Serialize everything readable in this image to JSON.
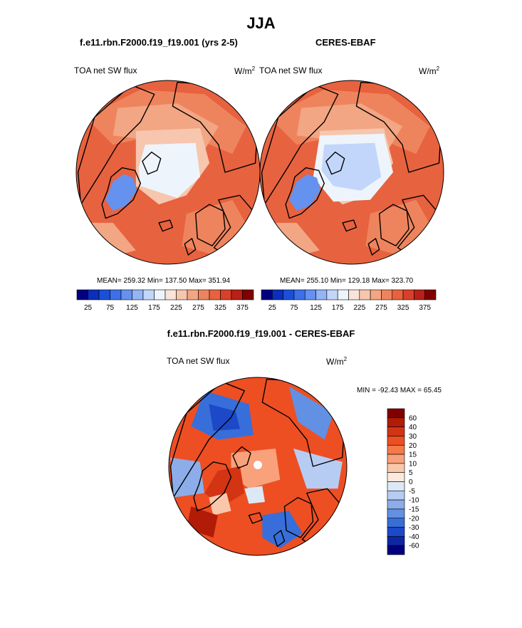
{
  "page": {
    "title": "JJA",
    "colors": {
      "deep_blue": "#000080",
      "deep_red": "#800000",
      "pale": "#f7e1d6"
    }
  },
  "panels": {
    "model": {
      "case": "f.e11.rbn.F2000.f19_f19.001 (yrs 2-5)",
      "variable": "TOA net SW flux",
      "units": "W/m",
      "units_exp": "2",
      "stats": "MEAN= 259.32  Min= 137.50  Max= 351.94"
    },
    "obs": {
      "case": "CERES-EBAF",
      "variable": "TOA net SW flux",
      "units": "W/m",
      "units_exp": "2",
      "stats": "MEAN= 255.10  Min= 129.18  Max= 323.70"
    },
    "diff": {
      "title": "f.e11.rbn.F2000.f19_f19.001 - CERES-EBAF",
      "variable": "TOA net SW flux",
      "units": "W/m",
      "units_exp": "2",
      "stats": "MIN = -92.43 MAX =  65.45"
    }
  },
  "chart_data": [
    {
      "type": "heatmap",
      "projection": "north-polar-stereographic",
      "title": "TOA net SW flux",
      "subtitle": "f.e11.rbn.F2000.f19_f19.001 (yrs 2-5)",
      "units": "W/m2",
      "stats": {
        "mean": 259.32,
        "min": 137.5,
        "max": 351.94
      },
      "colorbar": {
        "orientation": "horizontal",
        "levels": [
          25,
          50,
          75,
          100,
          125,
          150,
          175,
          200,
          225,
          250,
          275,
          300,
          325,
          350,
          375
        ],
        "tick_labels": [
          "25",
          "75",
          "125",
          "175",
          "225",
          "275",
          "325",
          "375"
        ],
        "colors": [
          "#000080",
          "#0c2ebd",
          "#1a4fd8",
          "#3c6fe8",
          "#6592ef",
          "#93b4f5",
          "#c2d6fb",
          "#eef4fb",
          "#fae4da",
          "#f6c6ae",
          "#f2a683",
          "#ee845d",
          "#e7623f",
          "#d8402a",
          "#b82018",
          "#800000"
        ]
      }
    },
    {
      "type": "heatmap",
      "projection": "north-polar-stereographic",
      "title": "TOA net SW flux",
      "subtitle": "CERES-EBAF",
      "units": "W/m2",
      "stats": {
        "mean": 255.1,
        "min": 129.18,
        "max": 323.7
      },
      "colorbar": {
        "orientation": "horizontal",
        "levels": [
          25,
          50,
          75,
          100,
          125,
          150,
          175,
          200,
          225,
          250,
          275,
          300,
          325,
          350,
          375
        ],
        "tick_labels": [
          "25",
          "75",
          "125",
          "175",
          "225",
          "275",
          "325",
          "375"
        ],
        "colors": [
          "#000080",
          "#0c2ebd",
          "#1a4fd8",
          "#3c6fe8",
          "#6592ef",
          "#93b4f5",
          "#c2d6fb",
          "#eef4fb",
          "#fae4da",
          "#f6c6ae",
          "#f2a683",
          "#ee845d",
          "#e7623f",
          "#d8402a",
          "#b82018",
          "#800000"
        ]
      }
    },
    {
      "type": "heatmap",
      "projection": "north-polar-stereographic",
      "title": "TOA net SW flux",
      "subtitle": "f.e11.rbn.F2000.f19_f19.001 - CERES-EBAF",
      "units": "W/m2",
      "stats": {
        "min": -92.43,
        "max": 65.45
      },
      "colorbar": {
        "orientation": "vertical",
        "levels": [
          60,
          40,
          30,
          20,
          15,
          10,
          5,
          0,
          -5,
          -10,
          -15,
          -20,
          -30,
          -40,
          -60
        ],
        "tick_labels": [
          "60",
          "40",
          "30",
          "20",
          "15",
          "10",
          "5",
          "0",
          "-5",
          "-10",
          "-15",
          "-20",
          "-30",
          "-40",
          "-60"
        ],
        "colors": [
          "#800000",
          "#b21b08",
          "#d33414",
          "#ed4f22",
          "#f47a48",
          "#f8a17a",
          "#fbc7ab",
          "#fde9dc",
          "#dde8f7",
          "#b7ccf3",
          "#8cade9",
          "#6290e2",
          "#386ed9",
          "#1d48c8",
          "#0d27a4",
          "#000080"
        ]
      }
    }
  ]
}
